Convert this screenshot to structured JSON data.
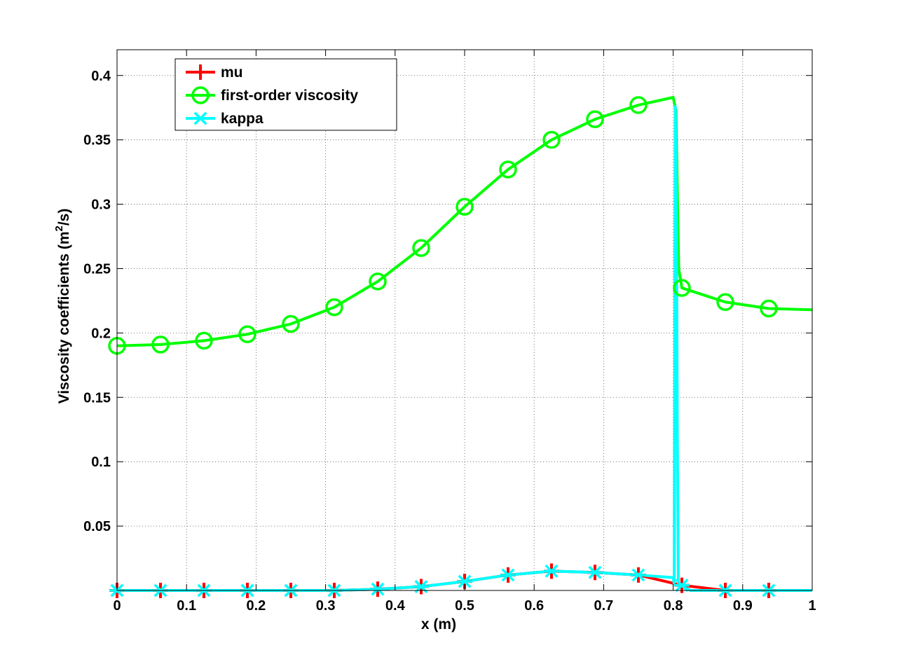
{
  "chart_data": {
    "type": "line",
    "xlabel": "x (m)",
    "ylabel_main": "Viscosity coefficients (m",
    "ylabel_sup": "2",
    "ylabel_tail": "/s)",
    "xlim": [
      0,
      1
    ],
    "ylim": [
      0,
      0.42
    ],
    "grid": true,
    "legend_position": "top-left",
    "x_ticks": [
      0,
      0.1,
      0.2,
      0.3,
      0.4,
      0.5,
      0.6,
      0.7,
      0.8,
      0.9,
      1
    ],
    "x_tick_labels": [
      "0",
      "0.1",
      "0.2",
      "0.3",
      "0.4",
      "0.5",
      "0.6",
      "0.7",
      "0.8",
      "0.9",
      "1"
    ],
    "y_ticks": [
      0.05,
      0.1,
      0.15,
      0.2,
      0.25,
      0.3,
      0.35,
      0.4
    ],
    "y_tick_labels": [
      "0.05",
      "0.1",
      "0.15",
      "0.2",
      "0.25",
      "0.3",
      "0.35",
      "0.4"
    ],
    "series": [
      {
        "name": "mu",
        "color": "#ff0000",
        "marker": "plus",
        "x": [
          0,
          0.0625,
          0.125,
          0.1875,
          0.25,
          0.3125,
          0.375,
          0.4375,
          0.5,
          0.5625,
          0.625,
          0.6875,
          0.75,
          0.8125,
          0.875,
          0.9375
        ],
        "y": [
          0,
          0,
          0,
          0,
          0,
          0,
          0.001,
          0.003,
          0.007,
          0.012,
          0.015,
          0.014,
          0.012,
          0.004,
          0,
          0
        ]
      },
      {
        "name": "first-order viscosity",
        "color": "#00ff00",
        "marker": "circle",
        "x": [
          0,
          0.0625,
          0.125,
          0.1875,
          0.25,
          0.3125,
          0.375,
          0.4375,
          0.5,
          0.5625,
          0.625,
          0.6875,
          0.75,
          0.8125,
          0.875,
          0.9375
        ],
        "y": [
          0.19,
          0.191,
          0.194,
          0.199,
          0.207,
          0.22,
          0.24,
          0.266,
          0.298,
          0.327,
          0.35,
          0.366,
          0.377,
          0.235,
          0.224,
          0.219
        ],
        "line_x": [
          0,
          0.0625,
          0.125,
          0.1875,
          0.25,
          0.3125,
          0.375,
          0.4375,
          0.5,
          0.5625,
          0.625,
          0.6875,
          0.75,
          0.8,
          0.804,
          0.808,
          0.8125,
          0.875,
          0.9375,
          1.0
        ],
        "line_y": [
          0.19,
          0.191,
          0.194,
          0.199,
          0.207,
          0.22,
          0.24,
          0.266,
          0.298,
          0.327,
          0.35,
          0.366,
          0.377,
          0.383,
          0.373,
          0.25,
          0.235,
          0.224,
          0.219,
          0.218
        ]
      },
      {
        "name": "kappa",
        "color": "#00ffff",
        "marker": "asterisk",
        "x": [
          0,
          0.0625,
          0.125,
          0.1875,
          0.25,
          0.3125,
          0.375,
          0.4375,
          0.5,
          0.5625,
          0.625,
          0.6875,
          0.75,
          0.8125,
          0.875,
          0.9375
        ],
        "y": [
          0,
          0,
          0,
          0,
          0,
          0,
          0.001,
          0.003,
          0.007,
          0.012,
          0.015,
          0.014,
          0.012,
          0.004,
          0,
          0
        ],
        "line_x": [
          0,
          0.3125,
          0.375,
          0.4375,
          0.5,
          0.5625,
          0.625,
          0.6875,
          0.75,
          0.8,
          0.8015,
          0.803,
          0.8045,
          0.806,
          0.8075,
          0.8125,
          0.825,
          0.875,
          1.0
        ],
        "line_y": [
          0,
          0,
          0.001,
          0.003,
          0.007,
          0.012,
          0.015,
          0.014,
          0.012,
          0.01,
          0.005,
          0.376,
          0.33,
          0.12,
          0.005,
          0.003,
          0,
          0,
          0
        ]
      }
    ]
  }
}
